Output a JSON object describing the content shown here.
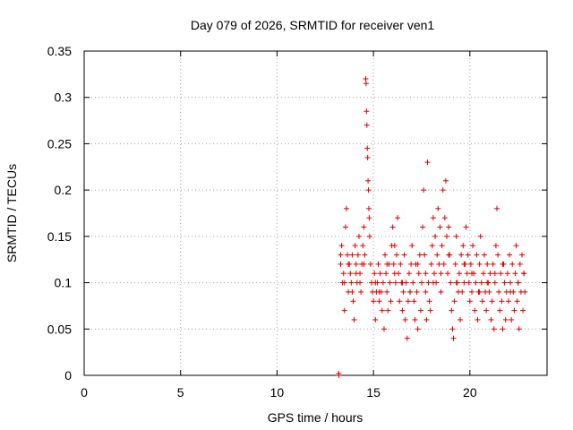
{
  "chart_data": {
    "type": "scatter",
    "title": "Day 079 of 2026, SRMTID for receiver ven1",
    "xlabel": "GPS time / hours",
    "ylabel": "SRMTID / TECUs",
    "xlim": [
      0,
      24
    ],
    "ylim": [
      0,
      0.35
    ],
    "xticks": [
      0,
      5,
      10,
      15,
      20
    ],
    "xtick_labels": [
      "0",
      "5",
      "10",
      "15",
      "20"
    ],
    "yticks": [
      0,
      0.05,
      0.1,
      0.15,
      0.2,
      0.25,
      0.3,
      0.35
    ],
    "ytick_labels": [
      "0",
      "0.05",
      "0.1",
      "0.15",
      "0.2",
      "0.25",
      "0.3",
      "0.35"
    ],
    "grid": true,
    "legend": "none",
    "marker": "plus",
    "color": "#e00000",
    "series": [
      {
        "name": "SRMTID",
        "x": [
          13.2,
          13.2,
          13.3,
          13.35,
          13.4,
          13.45,
          13.5,
          13.55,
          13.6,
          13.65,
          13.7,
          13.75,
          13.8,
          13.85,
          13.9,
          13.95,
          14.0,
          14.05,
          14.1,
          14.15,
          14.2,
          14.25,
          14.3,
          14.35,
          14.4,
          14.45,
          14.5,
          14.55,
          14.6,
          14.62,
          14.64,
          14.66,
          14.68,
          14.7,
          14.72,
          14.74,
          14.76,
          14.78,
          14.8,
          14.85,
          14.9,
          14.95,
          15.0,
          15.05,
          15.1,
          15.15,
          15.2,
          15.25,
          15.3,
          15.35,
          15.4,
          15.45,
          15.5,
          15.55,
          15.6,
          15.65,
          15.7,
          15.75,
          15.8,
          15.85,
          15.9,
          15.95,
          16.0,
          16.05,
          16.1,
          16.15,
          16.2,
          16.25,
          16.3,
          16.35,
          16.4,
          16.45,
          16.5,
          16.55,
          16.6,
          16.65,
          16.7,
          16.75,
          16.8,
          16.85,
          16.9,
          16.95,
          17.0,
          17.05,
          17.1,
          17.15,
          17.2,
          17.25,
          17.3,
          17.35,
          17.4,
          17.45,
          17.5,
          17.55,
          17.6,
          17.65,
          17.7,
          17.75,
          17.8,
          17.85,
          17.9,
          17.95,
          18.0,
          18.05,
          18.1,
          18.15,
          18.2,
          18.25,
          18.3,
          18.35,
          18.4,
          18.45,
          18.5,
          18.55,
          18.6,
          18.65,
          18.7,
          18.75,
          18.8,
          18.85,
          18.9,
          18.95,
          19.0,
          19.05,
          19.1,
          19.15,
          19.2,
          19.25,
          19.3,
          19.35,
          19.4,
          19.45,
          19.5,
          19.55,
          19.6,
          19.65,
          19.7,
          19.75,
          19.8,
          19.85,
          19.9,
          19.95,
          20.0,
          20.05,
          20.1,
          20.15,
          20.2,
          20.25,
          20.3,
          20.35,
          20.4,
          20.45,
          20.5,
          20.55,
          20.6,
          20.65,
          20.7,
          20.75,
          20.8,
          20.85,
          20.9,
          20.95,
          21.0,
          21.05,
          21.1,
          21.15,
          21.2,
          21.25,
          21.3,
          21.35,
          21.4,
          21.45,
          21.5,
          21.55,
          21.6,
          21.65,
          21.7,
          21.75,
          21.8,
          21.85,
          21.9,
          21.95,
          22.0,
          22.05,
          22.1,
          22.15,
          22.2,
          22.25,
          22.3,
          22.35,
          22.4,
          22.45,
          22.5,
          22.55,
          22.6,
          22.65,
          22.7,
          22.75,
          22.8,
          22.85,
          13.3,
          13.5,
          13.7,
          13.9,
          14.1,
          14.3,
          14.5,
          15.1,
          15.3,
          15.7,
          16.1,
          16.5,
          16.9,
          17.3,
          17.7,
          18.1,
          18.5,
          18.9,
          19.3,
          19.7,
          20.1,
          20.5,
          20.9,
          21.3,
          21.7,
          22.1,
          22.5,
          22.8
        ],
        "y": [
          0.0,
          0.002,
          0.12,
          0.14,
          0.1,
          0.11,
          0.07,
          0.16,
          0.18,
          0.13,
          0.09,
          0.12,
          0.11,
          0.1,
          0.13,
          0.08,
          0.06,
          0.14,
          0.12,
          0.1,
          0.13,
          0.15,
          0.11,
          0.09,
          0.12,
          0.14,
          0.16,
          0.13,
          0.32,
          0.315,
          0.285,
          0.27,
          0.245,
          0.235,
          0.21,
          0.2,
          0.18,
          0.17,
          0.15,
          0.12,
          0.1,
          0.09,
          0.08,
          0.11,
          0.06,
          0.09,
          0.1,
          0.12,
          0.08,
          0.11,
          0.09,
          0.07,
          0.1,
          0.05,
          0.13,
          0.11,
          0.09,
          0.07,
          0.12,
          0.1,
          0.08,
          0.14,
          0.16,
          0.12,
          0.14,
          0.1,
          0.13,
          0.17,
          0.11,
          0.08,
          0.12,
          0.1,
          0.07,
          0.09,
          0.13,
          0.06,
          0.1,
          0.04,
          0.08,
          0.11,
          0.09,
          0.12,
          0.14,
          0.1,
          0.08,
          0.06,
          0.12,
          0.09,
          0.05,
          0.11,
          0.13,
          0.07,
          0.1,
          0.16,
          0.2,
          0.13,
          0.09,
          0.06,
          0.23,
          0.1,
          0.08,
          0.07,
          0.12,
          0.14,
          0.17,
          0.11,
          0.15,
          0.1,
          0.13,
          0.18,
          0.12,
          0.16,
          0.09,
          0.14,
          0.2,
          0.12,
          0.17,
          0.21,
          0.15,
          0.11,
          0.16,
          0.13,
          0.1,
          0.07,
          0.05,
          0.04,
          0.08,
          0.12,
          0.15,
          0.1,
          0.09,
          0.11,
          0.06,
          0.13,
          0.09,
          0.14,
          0.1,
          0.12,
          0.16,
          0.11,
          0.13,
          0.1,
          0.08,
          0.12,
          0.09,
          0.14,
          0.11,
          0.07,
          0.1,
          0.13,
          0.06,
          0.09,
          0.12,
          0.15,
          0.1,
          0.08,
          0.11,
          0.13,
          0.09,
          0.07,
          0.12,
          0.1,
          0.09,
          0.11,
          0.06,
          0.08,
          0.12,
          0.05,
          0.1,
          0.14,
          0.18,
          0.13,
          0.09,
          0.07,
          0.11,
          0.08,
          0.05,
          0.12,
          0.1,
          0.06,
          0.09,
          0.11,
          0.08,
          0.13,
          0.1,
          0.06,
          0.12,
          0.09,
          0.07,
          0.11,
          0.14,
          0.08,
          0.1,
          0.05,
          0.12,
          0.09,
          0.13,
          0.07,
          0.11,
          0.09,
          0.13,
          0.1,
          0.12,
          0.09,
          0.11,
          0.1,
          0.12,
          0.1,
          0.09,
          0.12,
          0.11,
          0.1,
          0.09,
          0.12,
          0.11,
          0.1,
          0.11,
          0.13,
          0.1,
          0.12,
          0.11,
          0.09,
          0.1,
          0.11,
          0.12,
          0.09,
          0.1,
          0.11
        ]
      }
    ]
  }
}
